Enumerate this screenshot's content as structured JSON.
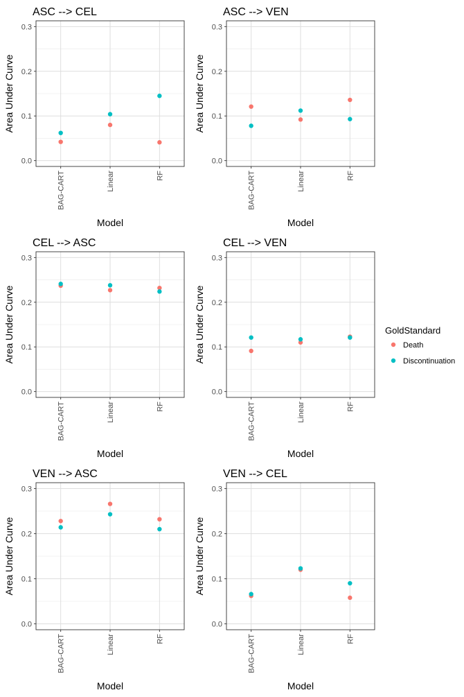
{
  "legend": {
    "title": "GoldStandard",
    "position": "right",
    "entries": [
      {
        "label": "Death",
        "color": "#F8766D"
      },
      {
        "label": "Discontinuation",
        "color": "#00BFC4"
      }
    ]
  },
  "chart_data": [
    {
      "type": "scatter",
      "title": "ASC --> CEL",
      "xlabel": "Model",
      "ylabel": "Area Under Curve",
      "categories": [
        "BAG-CART",
        "Linear",
        "RF"
      ],
      "ylim": [
        -0.013,
        0.313
      ],
      "yticks": [
        "0.0",
        "0.1",
        "0.2",
        "0.3"
      ],
      "grid": true,
      "series": [
        {
          "name": "Death",
          "color": "#F8766D",
          "values": [
            0.042,
            0.08,
            0.041
          ]
        },
        {
          "name": "Discontinuation",
          "color": "#00BFC4",
          "values": [
            0.062,
            0.104,
            0.145
          ]
        }
      ]
    },
    {
      "type": "scatter",
      "title": "ASC --> VEN",
      "xlabel": "Model",
      "ylabel": "Area Under Curve",
      "categories": [
        "BAG-CART",
        "Linear",
        "RF"
      ],
      "ylim": [
        -0.013,
        0.313
      ],
      "yticks": [
        "0.0",
        "0.1",
        "0.2",
        "0.3"
      ],
      "grid": true,
      "series": [
        {
          "name": "Death",
          "color": "#F8766D",
          "values": [
            0.121,
            0.092,
            0.136
          ]
        },
        {
          "name": "Discontinuation",
          "color": "#00BFC4",
          "values": [
            0.078,
            0.112,
            0.093
          ]
        }
      ]
    },
    {
      "type": "scatter",
      "title": "CEL --> ASC",
      "xlabel": "Model",
      "ylabel": "Area Under Curve",
      "categories": [
        "BAG-CART",
        "Linear",
        "RF"
      ],
      "ylim": [
        -0.013,
        0.313
      ],
      "yticks": [
        "0.0",
        "0.1",
        "0.2",
        "0.3"
      ],
      "grid": true,
      "series": [
        {
          "name": "Death",
          "color": "#F8766D",
          "values": [
            0.237,
            0.227,
            0.232
          ]
        },
        {
          "name": "Discontinuation",
          "color": "#00BFC4",
          "values": [
            0.241,
            0.238,
            0.224
          ]
        }
      ]
    },
    {
      "type": "scatter",
      "title": "CEL --> VEN",
      "xlabel": "Model",
      "ylabel": "Area Under Curve",
      "categories": [
        "BAG-CART",
        "Linear",
        "RF"
      ],
      "ylim": [
        -0.013,
        0.313
      ],
      "yticks": [
        "0.0",
        "0.1",
        "0.2",
        "0.3"
      ],
      "grid": true,
      "series": [
        {
          "name": "Death",
          "color": "#F8766D",
          "values": [
            0.091,
            0.11,
            0.123
          ]
        },
        {
          "name": "Discontinuation",
          "color": "#00BFC4",
          "values": [
            0.121,
            0.117,
            0.121
          ]
        }
      ]
    },
    {
      "type": "scatter",
      "title": "VEN --> ASC",
      "xlabel": "Model",
      "ylabel": "Area Under Curve",
      "categories": [
        "BAG-CART",
        "Linear",
        "RF"
      ],
      "ylim": [
        -0.013,
        0.313
      ],
      "yticks": [
        "0.0",
        "0.1",
        "0.2",
        "0.3"
      ],
      "grid": true,
      "series": [
        {
          "name": "Death",
          "color": "#F8766D",
          "values": [
            0.228,
            0.266,
            0.232
          ]
        },
        {
          "name": "Discontinuation",
          "color": "#00BFC4",
          "values": [
            0.214,
            0.243,
            0.21
          ]
        }
      ]
    },
    {
      "type": "scatter",
      "title": "VEN --> CEL",
      "xlabel": "Model",
      "ylabel": "Area Under Curve",
      "categories": [
        "BAG-CART",
        "Linear",
        "RF"
      ],
      "ylim": [
        -0.013,
        0.313
      ],
      "yticks": [
        "0.0",
        "0.1",
        "0.2",
        "0.3"
      ],
      "grid": true,
      "series": [
        {
          "name": "Death",
          "color": "#F8766D",
          "values": [
            0.062,
            0.12,
            0.058
          ]
        },
        {
          "name": "Discontinuation",
          "color": "#00BFC4",
          "values": [
            0.066,
            0.123,
            0.09
          ]
        }
      ]
    }
  ]
}
